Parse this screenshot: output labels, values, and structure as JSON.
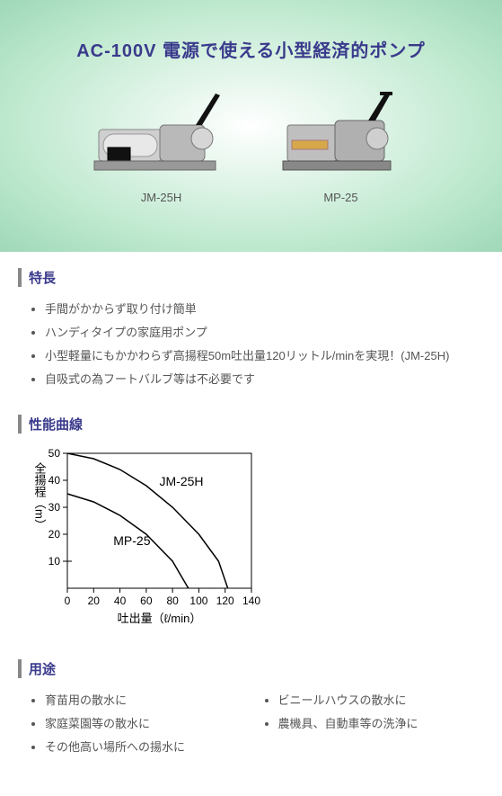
{
  "hero": {
    "title": "AC-100V 電源で使える小型経済的ポンプ",
    "pumps": [
      {
        "label": "JM-25H"
      },
      {
        "label": "MP-25"
      }
    ]
  },
  "sections": {
    "features": {
      "heading": "特長",
      "items": [
        "手間がかからず取り付け簡単",
        "ハンディタイプの家庭用ポンプ",
        "小型軽量にもかかわらず高揚程50m吐出量120リットル/minを実現！(JM-25H)",
        "自吸式の為フートバルブ等は不必要です"
      ]
    },
    "curve": {
      "heading": "性能曲線",
      "chart": {
        "type": "line",
        "xlabel": "吐出量（ℓ/min）",
        "ylabel": "全揚程（m）",
        "xlim": [
          0,
          140
        ],
        "xtick_step": 20,
        "ylim": [
          0,
          50
        ],
        "yticks": [
          10,
          20,
          30,
          40,
          50
        ],
        "background_color": "#ffffff",
        "axis_color": "#000000",
        "grid": false,
        "line_width": 1.5,
        "label_fontsize": 14,
        "series": [
          {
            "name": "JM-25H",
            "label_pos": {
              "x": 70,
              "y": 38
            },
            "points": [
              {
                "x": 0,
                "y": 50
              },
              {
                "x": 20,
                "y": 48
              },
              {
                "x": 40,
                "y": 44
              },
              {
                "x": 60,
                "y": 38
              },
              {
                "x": 80,
                "y": 30
              },
              {
                "x": 100,
                "y": 20
              },
              {
                "x": 115,
                "y": 10
              },
              {
                "x": 122,
                "y": 0
              }
            ],
            "color": "#000000"
          },
          {
            "name": "MP-25",
            "label_pos": {
              "x": 35,
              "y": 16
            },
            "points": [
              {
                "x": 0,
                "y": 35
              },
              {
                "x": 20,
                "y": 32
              },
              {
                "x": 40,
                "y": 27
              },
              {
                "x": 60,
                "y": 20
              },
              {
                "x": 80,
                "y": 10
              },
              {
                "x": 92,
                "y": 0
              }
            ],
            "color": "#000000"
          }
        ]
      }
    },
    "uses": {
      "heading": "用途",
      "left": [
        "育苗用の散水に",
        "家庭菜園等の散水に",
        "その他高い場所への揚水に"
      ],
      "right": [
        "ビニールハウスの散水に",
        "農機具、自動車等の洗浄に"
      ]
    }
  }
}
